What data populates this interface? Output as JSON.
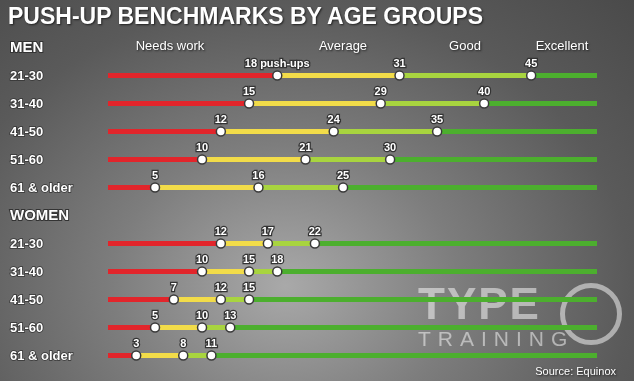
{
  "chart_data": {
    "type": "bar",
    "orientation": "horizontal",
    "title": "PUSH-UP BENCHMARKS BY AGE GROUPS",
    "source": "Source: Equinox",
    "watermark": [
      "TYPE",
      "TRAINING"
    ],
    "xlim": [
      0,
      52
    ],
    "tick_labels": false,
    "data_labels": true,
    "zones": [
      {
        "name": "Needs work",
        "color": "#e2252b"
      },
      {
        "name": "Average",
        "color": "#f2dc49"
      },
      {
        "name": "Good",
        "color": "#a8d43f"
      },
      {
        "name": "Excellent",
        "color": "#4caf2e"
      }
    ],
    "groups": [
      {
        "name": "MEN",
        "categories": [
          "21-30",
          "31-40",
          "41-50",
          "51-60",
          "61 & older"
        ],
        "values": [
          [
            18,
            31,
            45
          ],
          [
            15,
            29,
            40
          ],
          [
            12,
            24,
            35
          ],
          [
            10,
            21,
            30
          ],
          [
            5,
            16,
            25
          ]
        ],
        "value_labels": [
          [
            "18 push-ups",
            "31",
            "45"
          ],
          [
            "15",
            "29",
            "40"
          ],
          [
            "12",
            "24",
            "35"
          ],
          [
            "10",
            "21",
            "30"
          ],
          [
            "5",
            "16",
            "25"
          ]
        ]
      },
      {
        "name": "WOMEN",
        "categories": [
          "21-30",
          "31-40",
          "41-50",
          "51-60",
          "61 & older"
        ],
        "values": [
          [
            12,
            17,
            22
          ],
          [
            10,
            15,
            18
          ],
          [
            7,
            12,
            15
          ],
          [
            5,
            10,
            13
          ],
          [
            3,
            8,
            11
          ]
        ]
      }
    ]
  }
}
